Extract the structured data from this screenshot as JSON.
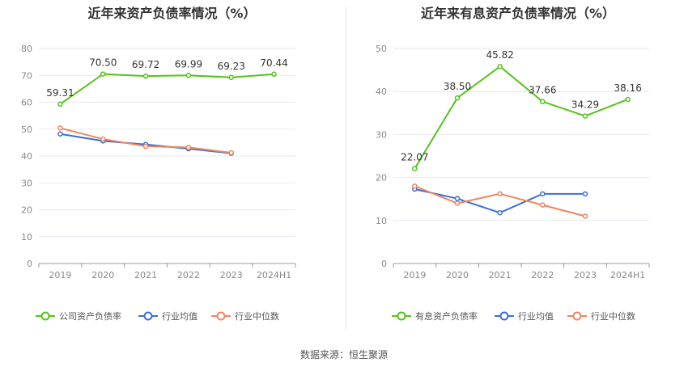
{
  "charts": [
    {
      "title": "近年来资产负债率情况（%）",
      "chart_data": {
        "type": "line",
        "title": "近年来资产负债率情况（%）",
        "categories": [
          "2019",
          "2020",
          "2021",
          "2022",
          "2023",
          "2024H1"
        ],
        "ylim": [
          0,
          80
        ],
        "yticks": [
          0,
          10,
          20,
          30,
          40,
          50,
          60,
          70,
          80
        ],
        "grid": true,
        "legend_position": "bottom",
        "series": [
          {
            "name": "公司资产负债率",
            "color": "#52c41a",
            "values": [
              59.31,
              70.5,
              69.72,
              69.99,
              69.23,
              70.44
            ],
            "labels": [
              "59.31",
              "70.50",
              "69.72",
              "69.99",
              "69.23",
              "70.44"
            ]
          },
          {
            "name": "行业均值",
            "color": "#3b6fd6",
            "values": [
              48.2,
              45.6,
              44.3,
              42.7,
              41.0,
              null
            ],
            "labels": null
          },
          {
            "name": "行业中位数",
            "color": "#f0845e",
            "values": [
              50.4,
              46.3,
              43.6,
              43.2,
              41.2,
              null
            ],
            "labels": null
          }
        ]
      }
    },
    {
      "title": "近年来有息资产负债率情况（%）",
      "chart_data": {
        "type": "line",
        "title": "近年来有息资产负债率情况（%）",
        "categories": [
          "2019",
          "2020",
          "2021",
          "2022",
          "2023",
          "2024H1"
        ],
        "ylim": [
          0,
          50
        ],
        "yticks": [
          0,
          10,
          20,
          30,
          40,
          50
        ],
        "grid": true,
        "legend_position": "bottom",
        "series": [
          {
            "name": "有息资产负债率",
            "color": "#52c41a",
            "values": [
              22.07,
              38.5,
              45.82,
              37.66,
              34.29,
              38.16
            ],
            "labels": [
              "22.07",
              "38.50",
              "45.82",
              "37.66",
              "34.29",
              "38.16"
            ]
          },
          {
            "name": "行业均值",
            "color": "#3b6fd6",
            "values": [
              17.3,
              15.1,
              11.8,
              16.2,
              16.2,
              null
            ],
            "labels": null
          },
          {
            "name": "行业中位数",
            "color": "#f0845e",
            "values": [
              18.0,
              14.0,
              16.2,
              13.6,
              11.0,
              null
            ],
            "labels": null
          }
        ]
      }
    }
  ],
  "source": "数据来源：恒生聚源"
}
